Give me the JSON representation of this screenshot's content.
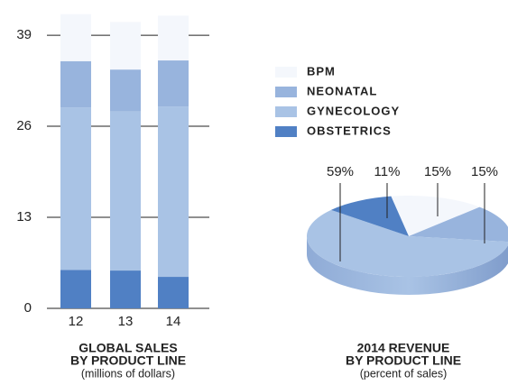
{
  "chart_data": [
    {
      "type": "bar",
      "stacked": true,
      "title": [
        "GLOBAL SALES",
        "BY PRODUCT LINE"
      ],
      "subtitle": "(millions of dollars)",
      "categories": [
        "12",
        "13",
        "14"
      ],
      "series": [
        {
          "name": "OBSTETRICS",
          "color": "#5080c4",
          "values": [
            5.5,
            5.4,
            4.5
          ]
        },
        {
          "name": "GYNECOLOGY",
          "color": "#a9c3e5",
          "values": [
            23.2,
            22.7,
            24.3
          ]
        },
        {
          "name": "NEONATAL",
          "color": "#98b4dd",
          "values": [
            6.6,
            6.0,
            6.6
          ]
        },
        {
          "name": "BPM",
          "color": "#f4f7fc",
          "values": [
            6.7,
            6.8,
            6.4
          ]
        }
      ],
      "ylim": [
        0,
        43
      ],
      "yticks": [
        0,
        13,
        26,
        39
      ],
      "grid": true
    },
    {
      "type": "pie",
      "title": [
        "2014 REVENUE",
        "BY PRODUCT LINE"
      ],
      "subtitle": "(percent of sales)",
      "values": [
        15,
        15,
        59,
        11
      ],
      "value_labels": [
        "15%",
        "15%",
        "59%",
        "11%"
      ],
      "colors": [
        "#f4f7fc",
        "#98b4dd",
        "#a9c3e5",
        "#5080c4"
      ]
    }
  ]
}
